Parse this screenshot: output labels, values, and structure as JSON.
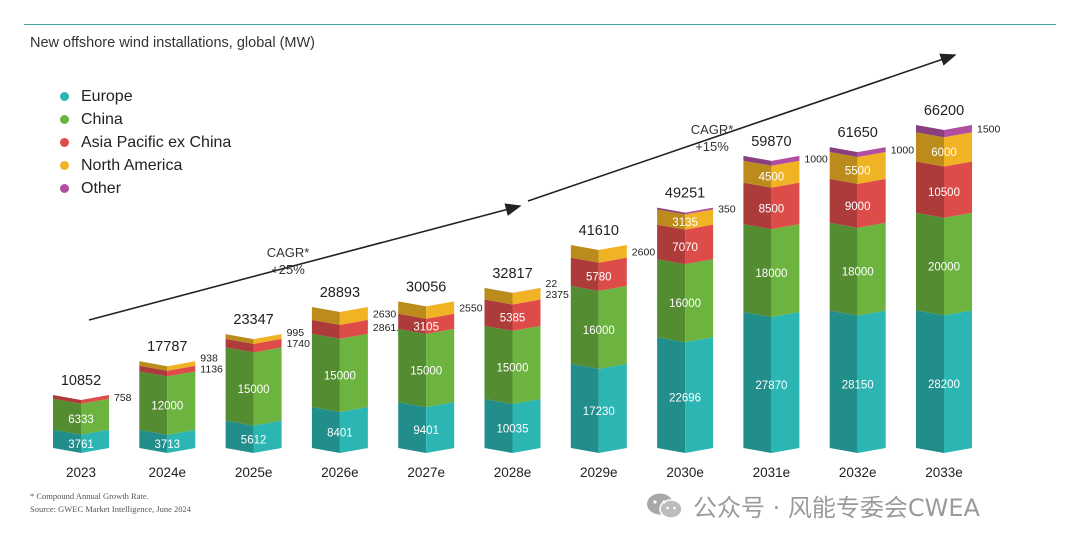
{
  "title": "New offshore wind installations, global (MW)",
  "legend": [
    {
      "label": "Europe",
      "color": "#2bb6b4"
    },
    {
      "label": "China",
      "color": "#6cb33f"
    },
    {
      "label": "Asia Pacific ex China",
      "color": "#de4c49"
    },
    {
      "label": "North America",
      "color": "#f0b323"
    },
    {
      "label": "Other",
      "color": "#b04fa1"
    }
  ],
  "footnote": {
    "line1": "* Compound Annual Growth Rate.",
    "line2": "Source: GWEC Market Intelligence, June 2024"
  },
  "watermark": "公众号 · 风能专委会CWEA",
  "chart_data": {
    "type": "bar",
    "stacked": true,
    "categories": [
      "2023",
      "2024e",
      "2025e",
      "2026e",
      "2027e",
      "2028e",
      "2029e",
      "2030e",
      "2031e",
      "2032e",
      "2033e"
    ],
    "totals": [
      "10852",
      "17787",
      "23347",
      "28893",
      "30056",
      "32817",
      "41610",
      "49251",
      "59870",
      "61650",
      "66200"
    ],
    "series": [
      {
        "name": "Europe",
        "color": "#2bb6b4",
        "values": [
          3761,
          3713,
          5612,
          8401,
          9401,
          10035,
          17230,
          22696,
          27870,
          28150,
          28200
        ]
      },
      {
        "name": "China",
        "color": "#6cb33f",
        "values": [
          6333,
          12000,
          15000,
          15000,
          15000,
          15000,
          16000,
          16000,
          18000,
          18000,
          20000
        ]
      },
      {
        "name": "Asia Pacific ex China",
        "color": "#de4c49",
        "values": [
          758,
          1136,
          1740,
          2861.8,
          3105,
          5385,
          5780,
          7070,
          8500,
          9000,
          10500
        ]
      },
      {
        "name": "North America",
        "color": "#f0b323",
        "values": [
          0,
          938,
          995,
          2630,
          2550,
          2375,
          2600,
          3135,
          4500,
          5500,
          6000
        ]
      },
      {
        "name": "Other",
        "color": "#b04fa1",
        "values": [
          0,
          0,
          0,
          0,
          0,
          22,
          0,
          350,
          1000,
          1000,
          1500
        ]
      }
    ],
    "segment_labels": [
      {
        "cat": 0,
        "series": 0,
        "text": "3761",
        "pos": "inside"
      },
      {
        "cat": 0,
        "series": 1,
        "text": "6333",
        "pos": "inside"
      },
      {
        "cat": 0,
        "series": 2,
        "text": "758",
        "pos": "right"
      },
      {
        "cat": 1,
        "series": 0,
        "text": "3713",
        "pos": "inside"
      },
      {
        "cat": 1,
        "series": 1,
        "text": "12000",
        "pos": "inside"
      },
      {
        "cat": 1,
        "series": 2,
        "text": "1136",
        "pos": "right"
      },
      {
        "cat": 1,
        "series": 3,
        "text": "938",
        "pos": "right"
      },
      {
        "cat": 2,
        "series": 0,
        "text": "5612",
        "pos": "inside"
      },
      {
        "cat": 2,
        "series": 1,
        "text": "15000",
        "pos": "inside"
      },
      {
        "cat": 2,
        "series": 2,
        "text": "1740",
        "pos": "right"
      },
      {
        "cat": 2,
        "series": 3,
        "text": "995",
        "pos": "right"
      },
      {
        "cat": 3,
        "series": 0,
        "text": "8401",
        "pos": "inside"
      },
      {
        "cat": 3,
        "series": 1,
        "text": "15000",
        "pos": "inside"
      },
      {
        "cat": 3,
        "series": 2,
        "text": "2861.8",
        "pos": "right"
      },
      {
        "cat": 3,
        "series": 3,
        "text": "2630",
        "pos": "right"
      },
      {
        "cat": 4,
        "series": 0,
        "text": "9401",
        "pos": "inside"
      },
      {
        "cat": 4,
        "series": 1,
        "text": "15000",
        "pos": "inside"
      },
      {
        "cat": 4,
        "series": 2,
        "text": "3105",
        "pos": "inside"
      },
      {
        "cat": 4,
        "series": 3,
        "text": "2550",
        "pos": "right"
      },
      {
        "cat": 5,
        "series": 0,
        "text": "10035",
        "pos": "inside"
      },
      {
        "cat": 5,
        "series": 1,
        "text": "15000",
        "pos": "inside"
      },
      {
        "cat": 5,
        "series": 2,
        "text": "5385",
        "pos": "inside"
      },
      {
        "cat": 5,
        "series": 3,
        "text": "2375",
        "pos": "right"
      },
      {
        "cat": 5,
        "series": 4,
        "text": "22",
        "pos": "right"
      },
      {
        "cat": 6,
        "series": 0,
        "text": "17230",
        "pos": "inside"
      },
      {
        "cat": 6,
        "series": 1,
        "text": "16000",
        "pos": "inside"
      },
      {
        "cat": 6,
        "series": 2,
        "text": "5780",
        "pos": "inside"
      },
      {
        "cat": 6,
        "series": 3,
        "text": "2600",
        "pos": "right"
      },
      {
        "cat": 7,
        "series": 0,
        "text": "22696",
        "pos": "inside"
      },
      {
        "cat": 7,
        "series": 1,
        "text": "16000",
        "pos": "inside"
      },
      {
        "cat": 7,
        "series": 2,
        "text": "7070",
        "pos": "inside"
      },
      {
        "cat": 7,
        "series": 3,
        "text": "3135",
        "pos": "inside"
      },
      {
        "cat": 7,
        "series": 4,
        "text": "350",
        "pos": "right"
      },
      {
        "cat": 8,
        "series": 0,
        "text": "27870",
        "pos": "inside"
      },
      {
        "cat": 8,
        "series": 1,
        "text": "18000",
        "pos": "inside"
      },
      {
        "cat": 8,
        "series": 2,
        "text": "8500",
        "pos": "inside"
      },
      {
        "cat": 8,
        "series": 3,
        "text": "4500",
        "pos": "inside"
      },
      {
        "cat": 8,
        "series": 4,
        "text": "1000",
        "pos": "right"
      },
      {
        "cat": 9,
        "series": 0,
        "text": "28150",
        "pos": "inside"
      },
      {
        "cat": 9,
        "series": 1,
        "text": "18000",
        "pos": "inside"
      },
      {
        "cat": 9,
        "series": 2,
        "text": "9000",
        "pos": "inside"
      },
      {
        "cat": 9,
        "series": 3,
        "text": "5500",
        "pos": "inside"
      },
      {
        "cat": 9,
        "series": 4,
        "text": "1000",
        "pos": "right"
      },
      {
        "cat": 10,
        "series": 0,
        "text": "28200",
        "pos": "inside"
      },
      {
        "cat": 10,
        "series": 1,
        "text": "20000",
        "pos": "inside"
      },
      {
        "cat": 10,
        "series": 2,
        "text": "10500",
        "pos": "inside"
      },
      {
        "cat": 10,
        "series": 3,
        "text": "6000",
        "pos": "inside"
      },
      {
        "cat": 10,
        "series": 4,
        "text": "1500",
        "pos": "right"
      }
    ],
    "annotations": [
      {
        "line1": "CAGR*",
        "line2": "+25%"
      },
      {
        "line1": "CAGR*",
        "line2": "+15%"
      }
    ],
    "ylim": [
      0,
      70000
    ],
    "grid": false,
    "legend_position": "top-left"
  }
}
